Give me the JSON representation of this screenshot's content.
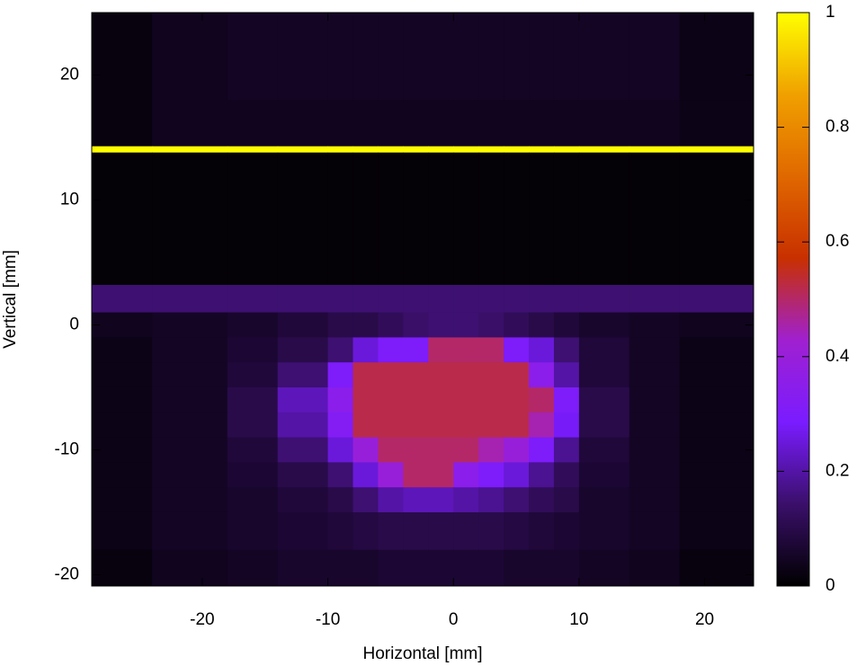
{
  "chart_data": {
    "type": "heatmap",
    "xlabel": "Horizontal [mm]",
    "ylabel": "Vertical [mm]",
    "xlim": [
      -28.8,
      23.9
    ],
    "ylim": [
      -20.9,
      25
    ],
    "xticks": [
      -20,
      -10,
      0,
      10,
      20
    ],
    "yticks": [
      -20,
      -10,
      0,
      10,
      20
    ],
    "zlim": [
      0,
      1
    ],
    "zticks": [
      0,
      0.2,
      0.4,
      0.6,
      0.8,
      1
    ],
    "colormap": [
      "#000000",
      "#3a0f6a",
      "#7a1cff",
      "#a020d0",
      "#c83000",
      "#e06800",
      "#f0a000",
      "#ffff00"
    ],
    "x_edges": [
      -28.8,
      -24,
      -18,
      -14,
      -10,
      -8,
      -6,
      -4,
      -2,
      0,
      2,
      4,
      6,
      8,
      10,
      14,
      18,
      23.9
    ],
    "y_edges": [
      25,
      18,
      14.3,
      13.8,
      3.2,
      1,
      -1,
      -3,
      -5,
      -7,
      -9,
      -11,
      -13,
      -15,
      -18,
      -20.9
    ],
    "z": [
      [
        0.02,
        0.04,
        0.05,
        0.05,
        0.05,
        0.05,
        0.05,
        0.05,
        0.05,
        0.05,
        0.05,
        0.05,
        0.05,
        0.05,
        0.05,
        0.05,
        0.03
      ],
      [
        0.02,
        0.04,
        0.04,
        0.04,
        0.04,
        0.04,
        0.04,
        0.04,
        0.04,
        0.04,
        0.04,
        0.04,
        0.04,
        0.04,
        0.04,
        0.04,
        0.03
      ],
      [
        1,
        1,
        1,
        1,
        1,
        1,
        1,
        1,
        1,
        1,
        1,
        1,
        1,
        1,
        1,
        1,
        1
      ],
      [
        0.01,
        0.01,
        0.01,
        0.01,
        0.01,
        0.01,
        0.01,
        0.01,
        0.01,
        0.01,
        0.01,
        0.01,
        0.01,
        0.01,
        0.01,
        0.01,
        0.01
      ],
      [
        0.15,
        0.15,
        0.15,
        0.15,
        0.15,
        0.15,
        0.15,
        0.15,
        0.15,
        0.15,
        0.15,
        0.15,
        0.15,
        0.15,
        0.15,
        0.15,
        0.15
      ],
      [
        0.04,
        0.05,
        0.06,
        0.08,
        0.1,
        0.1,
        0.12,
        0.14,
        0.15,
        0.15,
        0.14,
        0.12,
        0.1,
        0.08,
        0.06,
        0.05,
        0.04
      ],
      [
        0.03,
        0.05,
        0.07,
        0.1,
        0.15,
        0.25,
        0.3,
        0.3,
        0.5,
        0.5,
        0.5,
        0.3,
        0.25,
        0.15,
        0.08,
        0.05,
        0.03
      ],
      [
        0.03,
        0.05,
        0.08,
        0.15,
        0.3,
        0.52,
        0.52,
        0.52,
        0.52,
        0.52,
        0.52,
        0.52,
        0.35,
        0.2,
        0.08,
        0.05,
        0.03
      ],
      [
        0.03,
        0.05,
        0.1,
        0.22,
        0.35,
        0.52,
        0.52,
        0.52,
        0.52,
        0.52,
        0.52,
        0.52,
        0.5,
        0.3,
        0.1,
        0.05,
        0.03
      ],
      [
        0.03,
        0.05,
        0.1,
        0.2,
        0.32,
        0.52,
        0.52,
        0.52,
        0.52,
        0.52,
        0.52,
        0.52,
        0.45,
        0.28,
        0.1,
        0.05,
        0.03
      ],
      [
        0.03,
        0.05,
        0.08,
        0.15,
        0.25,
        0.4,
        0.5,
        0.5,
        0.5,
        0.5,
        0.45,
        0.4,
        0.3,
        0.18,
        0.08,
        0.05,
        0.03
      ],
      [
        0.03,
        0.05,
        0.07,
        0.1,
        0.15,
        0.25,
        0.4,
        0.5,
        0.5,
        0.35,
        0.3,
        0.25,
        0.18,
        0.12,
        0.07,
        0.05,
        0.03
      ],
      [
        0.03,
        0.05,
        0.06,
        0.08,
        0.1,
        0.15,
        0.2,
        0.22,
        0.22,
        0.2,
        0.18,
        0.15,
        0.12,
        0.1,
        0.06,
        0.05,
        0.03
      ],
      [
        0.03,
        0.05,
        0.06,
        0.07,
        0.08,
        0.09,
        0.1,
        0.1,
        0.1,
        0.1,
        0.1,
        0.09,
        0.08,
        0.07,
        0.06,
        0.05,
        0.03
      ],
      [
        0.02,
        0.04,
        0.05,
        0.06,
        0.06,
        0.06,
        0.07,
        0.07,
        0.07,
        0.07,
        0.07,
        0.06,
        0.06,
        0.06,
        0.05,
        0.04,
        0.02
      ]
    ]
  }
}
